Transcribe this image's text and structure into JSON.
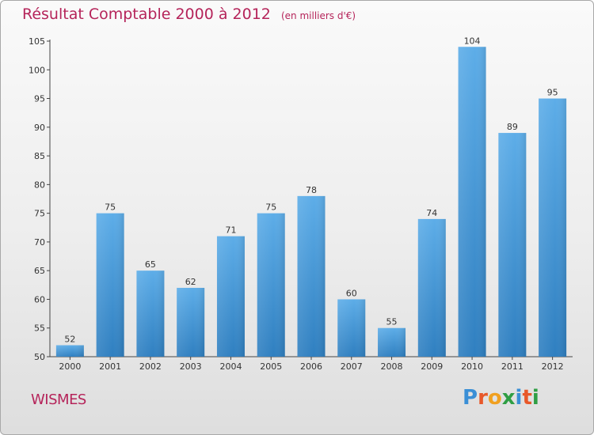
{
  "title": "Résultat Comptable 2000 à 2012",
  "subtitle": "(en milliers d'€)",
  "place_name": "WISMES",
  "logo_text": "Proxiti",
  "colors": {
    "title": "#b5245a",
    "bar_top": "#5dade8",
    "bar_bottom": "#2f7fc0",
    "axis": "#444444",
    "grid": "#d6d6d6"
  },
  "chart_data": {
    "type": "bar",
    "categories": [
      "2000",
      "2001",
      "2002",
      "2003",
      "2004",
      "2005",
      "2006",
      "2007",
      "2008",
      "2009",
      "2010",
      "2011",
      "2012"
    ],
    "values": [
      52,
      75,
      65,
      62,
      71,
      75,
      78,
      60,
      55,
      74,
      104,
      89,
      95
    ],
    "title": "Résultat Comptable 2000 à 2012",
    "xlabel": "",
    "ylabel": "",
    "ylim": [
      50,
      105
    ],
    "yticks": [
      50,
      55,
      60,
      65,
      70,
      75,
      80,
      85,
      90,
      95,
      100,
      105
    ],
    "grid": false,
    "data_labels": true
  }
}
